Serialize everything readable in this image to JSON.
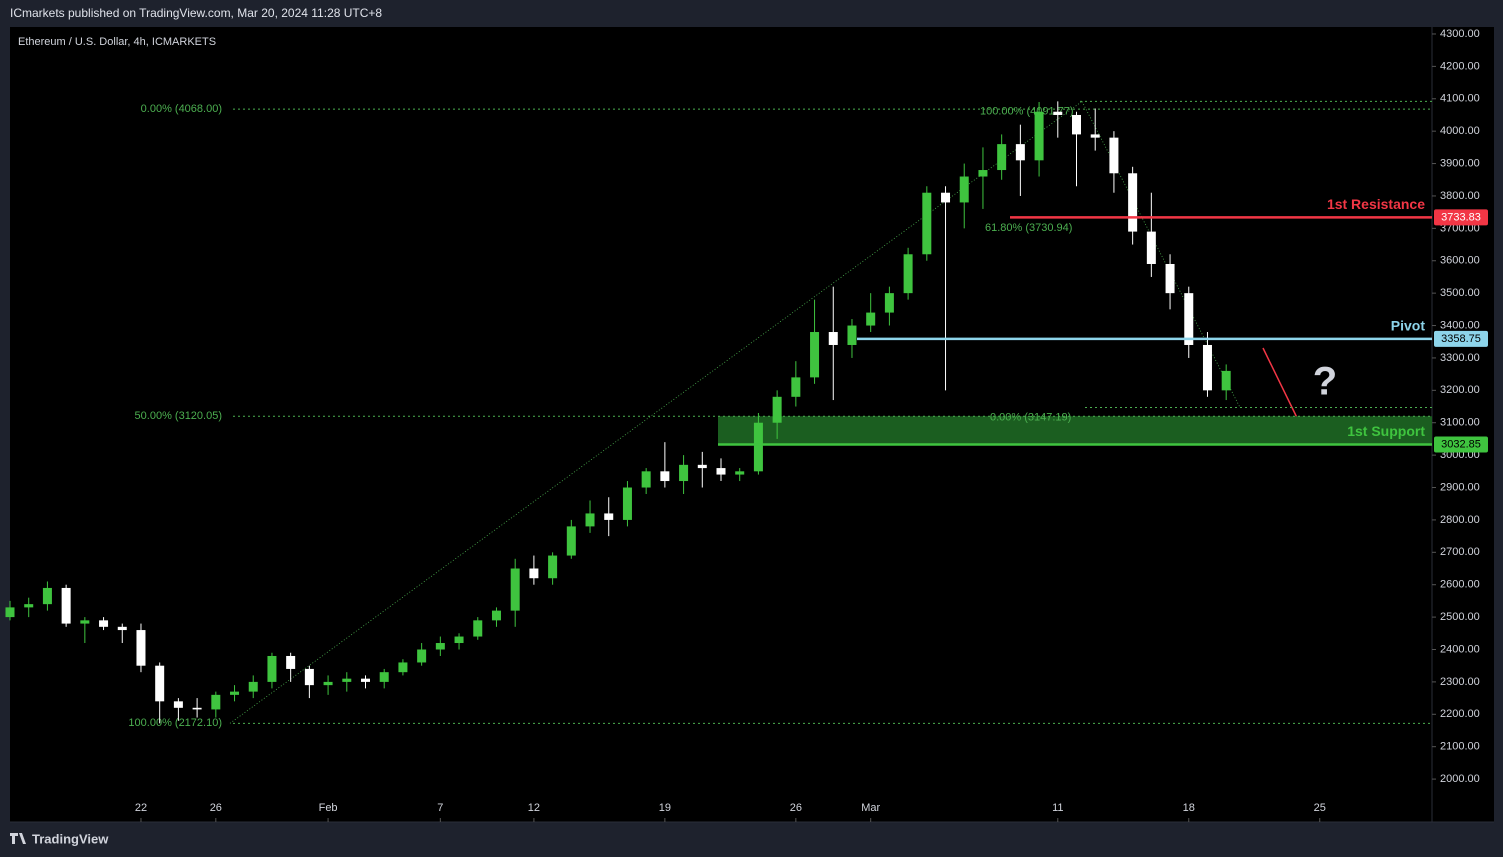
{
  "header": {
    "publisher": "ICmarkets published on TradingView.com, Mar 20, 2024 11:28 UTC+8",
    "symbol": "Ethereum / U.S. Dollar, 4h, ICMARKETS"
  },
  "footer": {
    "brand": "TradingView"
  },
  "chart_data": {
    "type": "candlestick",
    "x": [
      15,
      16,
      17,
      18,
      19,
      20,
      21,
      22,
      23,
      24,
      25,
      26,
      27,
      28,
      29,
      30,
      31,
      32,
      33,
      34,
      35,
      36,
      37,
      38,
      39,
      40,
      41,
      42,
      43,
      44,
      45,
      46,
      47,
      48,
      49,
      50,
      51,
      52,
      53,
      54,
      55,
      56,
      57,
      58,
      59,
      60,
      61,
      62,
      63,
      64,
      65,
      66,
      67,
      68,
      69,
      70,
      71,
      72,
      73,
      74,
      75,
      76,
      77,
      78,
      79,
      80
    ],
    "open": [
      2500,
      2530,
      2540,
      2590,
      2480,
      2490,
      2470,
      2460,
      2350,
      2240,
      2220,
      2215,
      2260,
      2270,
      2300,
      2380,
      2340,
      2290,
      2300,
      2310,
      2300,
      2330,
      2360,
      2400,
      2420,
      2440,
      2490,
      2520,
      2650,
      2620,
      2690,
      2780,
      2820,
      2800,
      2900,
      2950,
      2920,
      2970,
      2960,
      2940,
      2950,
      3100,
      3180,
      3240,
      3380,
      3340,
      3400,
      3440,
      3500,
      3620,
      3810,
      3780,
      3860,
      3880,
      3960,
      3910,
      4060,
      4050,
      3990,
      3980,
      3870,
      3690,
      3590,
      3500,
      3340,
      3200
    ],
    "high": [
      2550,
      2560,
      2610,
      2600,
      2500,
      2500,
      2480,
      2480,
      2360,
      2250,
      2250,
      2270,
      2290,
      2320,
      2390,
      2390,
      2350,
      2320,
      2330,
      2320,
      2340,
      2370,
      2420,
      2440,
      2450,
      2500,
      2530,
      2680,
      2690,
      2700,
      2800,
      2860,
      2870,
      2920,
      2960,
      3040,
      3000,
      3010,
      2990,
      2960,
      3130,
      3200,
      3290,
      3480,
      3520,
      3420,
      3500,
      3520,
      3640,
      3830,
      3830,
      3900,
      3950,
      3990,
      4020,
      4090,
      4092,
      4060,
      4070,
      4000,
      3890,
      3810,
      3620,
      3520,
      3380,
      3280
    ],
    "low": [
      2490,
      2500,
      2520,
      2470,
      2420,
      2460,
      2420,
      2330,
      2172,
      2180,
      2190,
      2190,
      2240,
      2250,
      2280,
      2300,
      2250,
      2260,
      2270,
      2280,
      2280,
      2320,
      2350,
      2380,
      2400,
      2430,
      2470,
      2470,
      2600,
      2600,
      2680,
      2760,
      2750,
      2780,
      2880,
      2900,
      2880,
      2900,
      2920,
      2920,
      2940,
      3050,
      3150,
      3220,
      3170,
      3300,
      3380,
      3400,
      3480,
      3600,
      3200,
      3700,
      3760,
      3850,
      3800,
      3860,
      3980,
      3830,
      3940,
      3810,
      3650,
      3550,
      3450,
      3300,
      3180,
      3170
    ],
    "close": [
      2530,
      2540,
      2590,
      2480,
      2490,
      2470,
      2460,
      2350,
      2240,
      2220,
      2215,
      2260,
      2270,
      2300,
      2380,
      2340,
      2290,
      2300,
      2310,
      2300,
      2330,
      2360,
      2400,
      2420,
      2440,
      2490,
      2520,
      2650,
      2620,
      2690,
      2780,
      2820,
      2800,
      2900,
      2950,
      2920,
      2970,
      2960,
      2940,
      2950,
      3100,
      3180,
      3240,
      3380,
      3340,
      3400,
      3440,
      3500,
      3620,
      3810,
      3780,
      3860,
      3880,
      3960,
      3910,
      4060,
      4050,
      3990,
      3980,
      3870,
      3690,
      3590,
      3500,
      3340,
      3200,
      3260
    ],
    "up_color": "#3fc43f",
    "down_color": "#ffffff",
    "xlim": [
      15,
      91
    ],
    "xticks": [
      22,
      26,
      {
        "value": 32,
        "label": "Feb"
      },
      {
        "value": 38,
        "label": "7"
      },
      {
        "value": 43,
        "label": "12"
      },
      {
        "value": 50,
        "label": "19"
      },
      {
        "value": 57,
        "label": "26"
      },
      {
        "value": 61,
        "label": "Mar"
      },
      {
        "value": 71,
        "label": "11"
      },
      {
        "value": 78,
        "label": "18"
      },
      {
        "value": 85,
        "label": "25"
      }
    ],
    "ylim": [
      1920,
      4320
    ],
    "yticks": [
      {
        "value": 2000,
        "label": "2000.00"
      },
      {
        "value": 2100,
        "label": "2100.00"
      },
      {
        "value": 2200,
        "label": "2200.00"
      },
      {
        "value": 2300,
        "label": "2300.00"
      },
      {
        "value": 2400,
        "label": "2400.00"
      },
      {
        "value": 2500,
        "label": "2500.00"
      },
      {
        "value": 2600,
        "label": "2600.00"
      },
      {
        "value": 2700,
        "label": "2700.00"
      },
      {
        "value": 2800,
        "label": "2800.00"
      },
      {
        "value": 2900,
        "label": "2900.00"
      },
      {
        "value": 3000,
        "label": "3000.00"
      },
      {
        "value": 3100,
        "label": "3100.00"
      },
      {
        "value": 3200,
        "label": "3200.00"
      },
      {
        "value": 3300,
        "label": "3300.00"
      },
      {
        "value": 3400,
        "label": "3400.00"
      },
      {
        "value": 3500,
        "label": "3500.00"
      },
      {
        "value": 3600,
        "label": "3600.00"
      },
      {
        "value": 3700,
        "label": "3700.00"
      },
      {
        "value": 3800,
        "label": "3800.00"
      },
      {
        "value": 3900,
        "label": "3900.00"
      },
      {
        "value": 4000,
        "label": "4000.00"
      },
      {
        "value": 4100,
        "label": "4100.00"
      },
      {
        "value": 4200,
        "label": "4200.00"
      },
      {
        "value": 4300,
        "label": "4300.00"
      }
    ],
    "fib_left": [
      {
        "label": "0.00% (4068.00)",
        "value": 4068
      },
      {
        "label": "50.00% (3120.05)",
        "value": 3120.05
      },
      {
        "label": "100.00% (2172.10)",
        "value": 2172.1
      }
    ],
    "fib_right": [
      {
        "label": "100.00% (4091.77)",
        "value": 4091.77
      },
      {
        "label": "61.80% (3730.94)",
        "value": 3730.94
      },
      {
        "label": "0.00% (3147.19)",
        "value": 3147.19
      }
    ],
    "fib_color": "#4caf50",
    "levels": [
      {
        "name": "1st Resistance",
        "value": 3733.83,
        "color": "#f23645",
        "text_color": "#ffffff"
      },
      {
        "name": "Pivot",
        "value": 3358.75,
        "color": "#8dd4ea",
        "text_color": "#000000"
      },
      {
        "name": "1st Support",
        "value": 3032.85,
        "color": "#3fc43f",
        "text_color": "#000000"
      }
    ],
    "annotation": "?"
  }
}
